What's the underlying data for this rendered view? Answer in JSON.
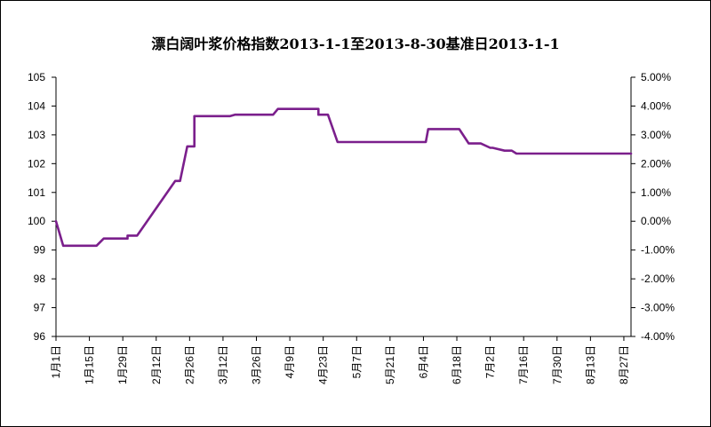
{
  "chart_data": {
    "type": "line",
    "title": "漂白阔叶浆价格指数2013-1-1至2013-8-30基准日2013-1-1",
    "x_tick_labels": [
      "1月1日",
      "1月15日",
      "1月29日",
      "2月12日",
      "2月26日",
      "3月12日",
      "3月26日",
      "4月9日",
      "4月23日",
      "5月7日",
      "5月21日",
      "6月4日",
      "6月18日",
      "7月2日",
      "7月16日",
      "7月30日",
      "8月13日",
      "8月27日"
    ],
    "y_left_ticks": [
      "96",
      "97",
      "98",
      "99",
      "100",
      "101",
      "102",
      "103",
      "104",
      "105"
    ],
    "y_right_ticks": [
      "-4.00%",
      "-3.00%",
      "-2.00%",
      "-1.00%",
      "0.00%",
      "1.00%",
      "2.00%",
      "3.00%",
      "4.00%",
      "5.00%"
    ],
    "ylim_left": [
      96,
      105
    ],
    "ylim_right": [
      -0.04,
      0.05
    ],
    "x_range_days": [
      0,
      241
    ],
    "line_color": "#7B1F8C",
    "grid": false,
    "series": [
      {
        "x": [
          "2013-01-01",
          "2013-01-04",
          "2013-01-18",
          "2013-01-21",
          "2013-01-31",
          "2013-01-31",
          "2013-02-04",
          "2013-02-20",
          "2013-02-22",
          "2013-02-25",
          "2013-02-26",
          "2013-02-28",
          "2013-02-28",
          "2013-03-15",
          "2013-03-17",
          "2013-04-02",
          "2013-04-04",
          "2013-04-21",
          "2013-04-21",
          "2013-04-25",
          "2013-04-29",
          "2013-06-05",
          "2013-06-06",
          "2013-06-19",
          "2013-06-23",
          "2013-06-28",
          "2013-07-02",
          "2013-07-03",
          "2013-07-08",
          "2013-07-11",
          "2013-07-13",
          "2013-08-30"
        ],
        "values": [
          100,
          99.15,
          99.15,
          99.4,
          99.4,
          99.5,
          99.5,
          101.4,
          101.4,
          102.6,
          102.6,
          102.6,
          103.65,
          103.65,
          103.7,
          103.7,
          103.9,
          103.9,
          103.7,
          103.7,
          102.75,
          102.75,
          103.2,
          103.2,
          102.7,
          102.7,
          102.55,
          102.55,
          102.45,
          102.45,
          102.35,
          102.35
        ]
      }
    ]
  }
}
